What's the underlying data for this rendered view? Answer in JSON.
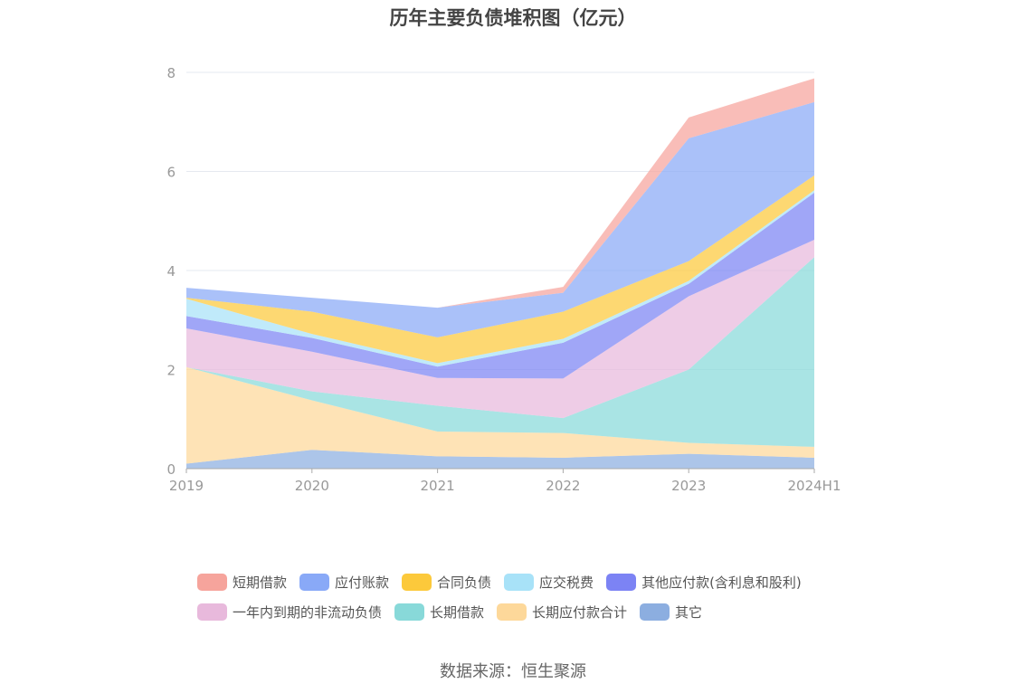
{
  "title": "历年主要负债堆积图（亿元）",
  "source": "数据来源：恒生聚源",
  "chart_data": {
    "type": "area",
    "stacked": true,
    "title": "历年主要负债堆积图（亿元）",
    "categories": [
      "2019",
      "2020",
      "2021",
      "2022",
      "2023",
      "2024H1"
    ],
    "ylim": [
      0,
      8
    ],
    "yticks": [
      "0",
      "2",
      "4",
      "6",
      "8"
    ],
    "grid": true,
    "legend_position": "bottom",
    "series": [
      {
        "name": "其它",
        "color": "#8caee0",
        "values": [
          0.1,
          0.38,
          0.25,
          0.22,
          0.3,
          0.22
        ]
      },
      {
        "name": "长期应付款合计",
        "color": "#fdd89a",
        "values": [
          1.95,
          1.0,
          0.5,
          0.5,
          0.22,
          0.22
        ]
      },
      {
        "name": "长期借款",
        "color": "#88d9d9",
        "values": [
          0.0,
          0.18,
          0.52,
          0.3,
          1.48,
          3.83
        ]
      },
      {
        "name": "一年内到期的非流动负债",
        "color": "#e8b9dc",
        "values": [
          0.78,
          0.8,
          0.56,
          0.8,
          1.48,
          0.35
        ]
      },
      {
        "name": "其他应付款(含利息和股利)",
        "color": "#7c83f4",
        "values": [
          0.25,
          0.28,
          0.23,
          0.72,
          0.25,
          0.95
        ]
      },
      {
        "name": "应交税费",
        "color": "#a8e2f8",
        "values": [
          0.35,
          0.08,
          0.07,
          0.08,
          0.06,
          0.05
        ]
      },
      {
        "name": "合同负债",
        "color": "#fcc93b",
        "values": [
          0.02,
          0.45,
          0.52,
          0.55,
          0.4,
          0.3
        ]
      },
      {
        "name": "应付账款",
        "color": "#89a9f7",
        "values": [
          0.2,
          0.28,
          0.6,
          0.38,
          2.48,
          1.48
        ]
      },
      {
        "name": "短期借款",
        "color": "#f6a49c",
        "values": [
          0.0,
          0.0,
          0.0,
          0.12,
          0.42,
          0.48
        ]
      }
    ]
  },
  "legend": {
    "row1": [
      {
        "label": "短期借款",
        "color": "#f6a49c"
      },
      {
        "label": "应付账款",
        "color": "#89a9f7"
      },
      {
        "label": "合同负债",
        "color": "#fcc93b"
      },
      {
        "label": "应交税费",
        "color": "#a8e2f8"
      },
      {
        "label": "其他应付款(含利息和股利)",
        "color": "#7c83f4"
      }
    ],
    "row2": [
      {
        "label": "一年内到期的非流动负债",
        "color": "#e8b9dc"
      },
      {
        "label": "长期借款",
        "color": "#88d9d9"
      },
      {
        "label": "长期应付款合计",
        "color": "#fdd89a"
      },
      {
        "label": "其它",
        "color": "#8caee0"
      }
    ]
  }
}
